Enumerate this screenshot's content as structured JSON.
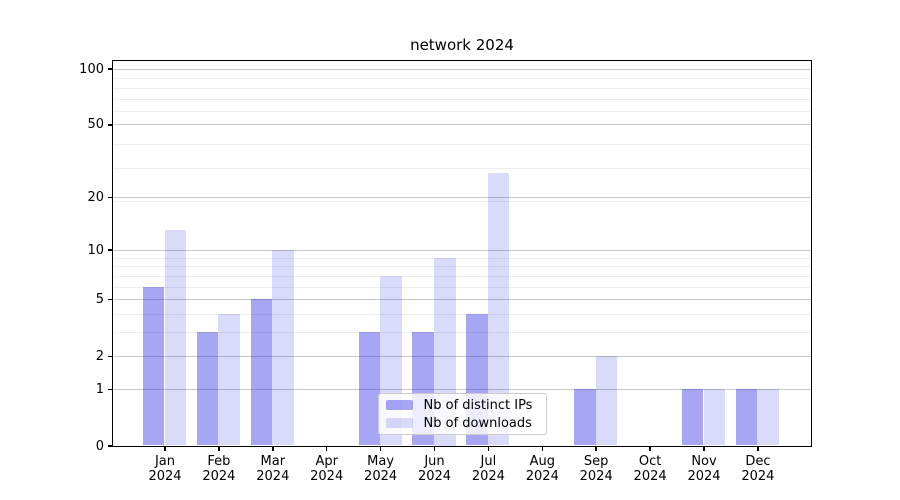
{
  "title": "network 2024",
  "chart_data": {
    "type": "bar",
    "title": "network 2024",
    "categories": [
      "Jan",
      "Feb",
      "Mar",
      "Apr",
      "May",
      "Jun",
      "Jul",
      "Aug",
      "Sep",
      "Oct",
      "Nov",
      "Dec"
    ],
    "category_year": "2024",
    "series": [
      {
        "name": "Nb of distinct IPs",
        "color": "rgba(27,27,229,0.39)",
        "color_hex": "#a5a5f5",
        "values": [
          6,
          3,
          5,
          0,
          3,
          3,
          4,
          0,
          1,
          0,
          1,
          1
        ]
      },
      {
        "name": "Nb of downloads",
        "color": "rgba(27,27,229,0.16)",
        "color_hex": "#dadafb",
        "values": [
          13,
          4,
          10,
          0,
          7,
          9,
          27,
          0,
          2,
          0,
          1,
          1
        ]
      }
    ],
    "xlabel": "",
    "ylabel": "",
    "yscale": "log1p",
    "yticks": [
      0,
      1,
      2,
      5,
      10,
      20,
      50,
      100
    ],
    "ylim": [
      0,
      112
    ],
    "grid": true,
    "legend_position": "lower center"
  },
  "colors": {
    "grid_major": "#c9c9c9",
    "grid_minor": "#ededed",
    "spine": "#000000",
    "background": "#ffffff",
    "legend_border": "#cccccc"
  }
}
